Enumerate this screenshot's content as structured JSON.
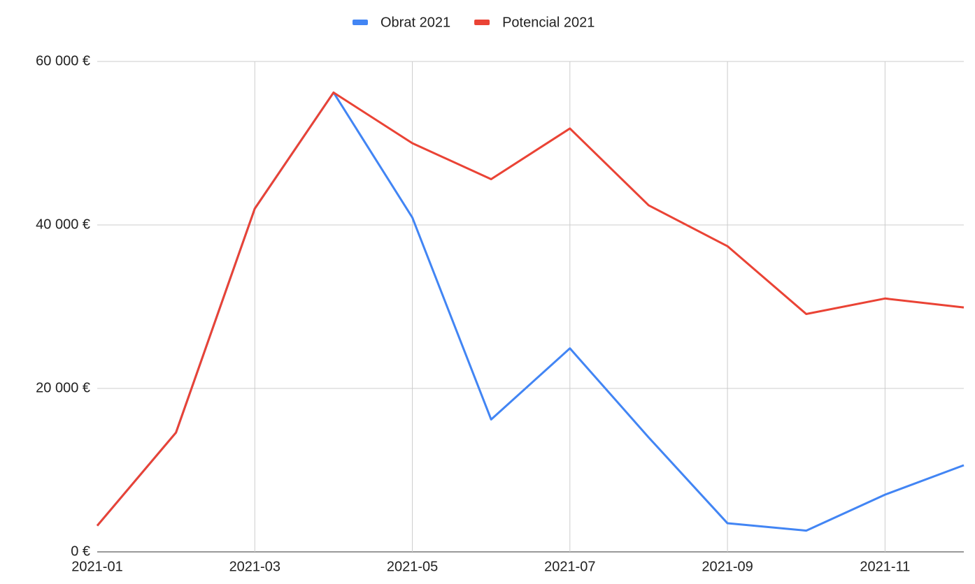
{
  "chart_data": {
    "type": "line",
    "categories": [
      "2021-01",
      null,
      "2021-03",
      null,
      "2021-05",
      null,
      "2021-07",
      null,
      "2021-09",
      null,
      "2021-11",
      null
    ],
    "series": [
      {
        "name": "Obrat 2021",
        "color": "#4285f4",
        "values": [
          3200,
          14600,
          42000,
          56200,
          40900,
          16200,
          24900,
          14000,
          3500,
          2600,
          7000,
          10600
        ]
      },
      {
        "name": "Potencial 2021",
        "color": "#ea4335",
        "values": [
          3200,
          14600,
          42000,
          56200,
          50000,
          45600,
          51800,
          42400,
          37400,
          29100,
          31000,
          29900
        ]
      }
    ],
    "ylim": [
      0,
      60000
    ],
    "yticks": [
      {
        "value": 0,
        "label": "0 €"
      },
      {
        "value": 20000,
        "label": "20 000 €"
      },
      {
        "value": 40000,
        "label": "40 000 €"
      },
      {
        "value": 60000,
        "label": "60 000 €"
      }
    ],
    "grid": true,
    "legend": "top"
  }
}
